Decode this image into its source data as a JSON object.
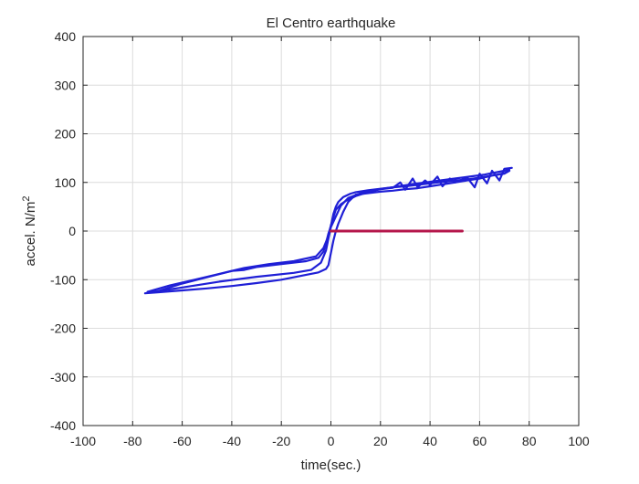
{
  "chart_data": {
    "type": "line",
    "title": "El Centro earthquake",
    "xlabel": "time(sec.)",
    "ylabel_text": "accel. N/m",
    "ylabel_superscript": "2",
    "xlim": [
      -100,
      100
    ],
    "ylim": [
      -400,
      400
    ],
    "xticks": [
      -100,
      -80,
      -60,
      -40,
      -20,
      0,
      20,
      40,
      60,
      80,
      100
    ],
    "yticks": [
      -400,
      -300,
      -200,
      -100,
      0,
      100,
      200,
      300,
      400
    ],
    "xtick_labels": [
      "-100",
      "-80",
      "-60",
      "-40",
      "-20",
      "0",
      "20",
      "40",
      "60",
      "80",
      "100"
    ],
    "ytick_labels": [
      "-400",
      "-300",
      "-200",
      "-100",
      "0",
      "100",
      "200",
      "300",
      "400"
    ],
    "grid": true,
    "series": [
      {
        "color": "#1f1fd6",
        "x": [
          -75,
          -70,
          -60,
          -50,
          -40,
          -35,
          -30,
          -20,
          -10,
          -5,
          -3,
          -2,
          -1,
          0,
          1,
          2,
          3,
          5,
          8,
          10,
          15,
          20,
          25,
          30,
          35,
          40,
          45,
          50,
          55,
          60,
          65,
          70,
          72,
          70,
          65,
          60,
          55,
          50,
          45,
          40,
          35,
          30,
          25,
          20,
          15,
          10,
          7,
          5,
          3,
          2,
          1,
          0,
          -1,
          -2,
          -5,
          -10,
          -20,
          -30,
          -40,
          -50,
          -60,
          -70,
          -75
        ],
        "y": [
          -128,
          -124,
          -108,
          -95,
          -82,
          -80,
          -74,
          -68,
          -62,
          -55,
          -42,
          -25,
          -5,
          10,
          35,
          50,
          60,
          70,
          77,
          80,
          84,
          87,
          90,
          92,
          95,
          98,
          101,
          104,
          106,
          110,
          114,
          119,
          124,
          118,
          114,
          108,
          104,
          100,
          96,
          92,
          88,
          86,
          83,
          81,
          78,
          75,
          60,
          40,
          15,
          0,
          -20,
          -45,
          -70,
          -78,
          -85,
          -90,
          -100,
          -107,
          -113,
          -118,
          -122,
          -126,
          -128
        ]
      },
      {
        "color": "#1f1fd6",
        "x": [
          -74,
          -65,
          -55,
          -45,
          -35,
          -25,
          -15,
          -6,
          -3,
          -1,
          0,
          1,
          2,
          4,
          6,
          10,
          15,
          20,
          25,
          28,
          30,
          33,
          35,
          38,
          40,
          43,
          45,
          48,
          50,
          55,
          58,
          60,
          63,
          65,
          68,
          70,
          73
        ],
        "y": [
          -125,
          -112,
          -100,
          -88,
          -76,
          -68,
          -62,
          -52,
          -35,
          -10,
          12,
          28,
          44,
          55,
          62,
          72,
          80,
          86,
          89,
          100,
          85,
          108,
          90,
          104,
          95,
          112,
          92,
          108,
          100,
          110,
          90,
          118,
          98,
          124,
          104,
          128,
          130
        ]
      },
      {
        "color": "#1f1fd6",
        "x": [
          -73,
          -60,
          -45,
          -30,
          -15,
          -8,
          -4,
          -2,
          -1,
          0,
          2,
          4,
          7,
          12,
          18,
          25,
          32,
          38,
          44,
          50,
          56,
          62,
          68,
          72
        ],
        "y": [
          -126,
          -116,
          -104,
          -94,
          -86,
          -80,
          -65,
          -40,
          -15,
          8,
          30,
          52,
          68,
          78,
          85,
          90,
          96,
          100,
          104,
          108,
          112,
          116,
          122,
          126
        ]
      },
      {
        "color": "#b5174b",
        "x": [
          0,
          53
        ],
        "y": [
          0,
          0
        ]
      }
    ]
  }
}
